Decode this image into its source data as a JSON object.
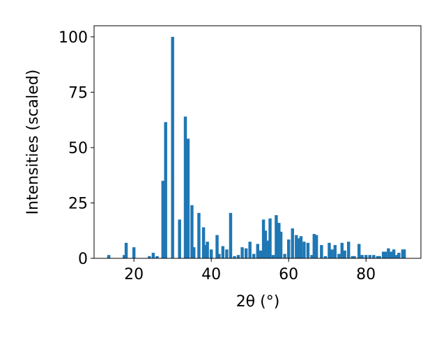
{
  "chart_data": {
    "type": "bar",
    "xlabel": "2θ (°)",
    "ylabel": "Intensities (scaled)",
    "color": "#1f77b4",
    "x": [
      13.5,
      17.5,
      18,
      20,
      24,
      25,
      26,
      27.5,
      28.2,
      30,
      31.8,
      33.3,
      34,
      35,
      35.5,
      36.8,
      38,
      38.5,
      39,
      40,
      41.5,
      42,
      43,
      44,
      45,
      46,
      47,
      48,
      49,
      50,
      51,
      52,
      52.8,
      53.5,
      54,
      54.6,
      55.2,
      56,
      56.8,
      57.5,
      58,
      59,
      60,
      61,
      62,
      62.6,
      63.2,
      64,
      65,
      66,
      66.6,
      67.2,
      68.5,
      69.5,
      70.5,
      71.2,
      72,
      73,
      73.8,
      74.5,
      75.5,
      76.5,
      77,
      78.2,
      79,
      80,
      81,
      82,
      83,
      83.5,
      84.5,
      85,
      85.8,
      86.5,
      87.2,
      88,
      88.5,
      89.5,
      89.9
    ],
    "values": [
      1.5,
      1.5,
      7,
      5,
      1,
      2.5,
      1,
      35,
      61.5,
      100,
      17.5,
      64,
      54,
      24,
      5,
      20.5,
      14,
      6,
      7.5,
      4,
      10.5,
      2,
      5.5,
      4,
      20.5,
      1,
      1.5,
      5,
      4.5,
      7.5,
      2,
      6.5,
      3.5,
      17.5,
      12.5,
      8,
      18,
      1.5,
      19.5,
      16,
      12,
      2,
      8.5,
      13.5,
      10.5,
      9,
      10,
      7.5,
      7,
      1.5,
      11,
      10.5,
      6,
      1,
      7,
      4,
      6,
      2,
      7,
      3.5,
      7.5,
      1,
      1,
      6.5,
      1.5,
      1.5,
      1.5,
      1.5,
      1,
      1,
      3,
      3,
      4.5,
      3,
      4,
      1.5,
      2.5,
      4,
      4
    ],
    "xlim": [
      9.7,
      94.2
    ],
    "ylim": [
      0,
      105
    ],
    "xticks": [
      20,
      40,
      60,
      80
    ],
    "yticks": [
      0,
      25,
      50,
      75,
      100
    ],
    "grid": false
  }
}
